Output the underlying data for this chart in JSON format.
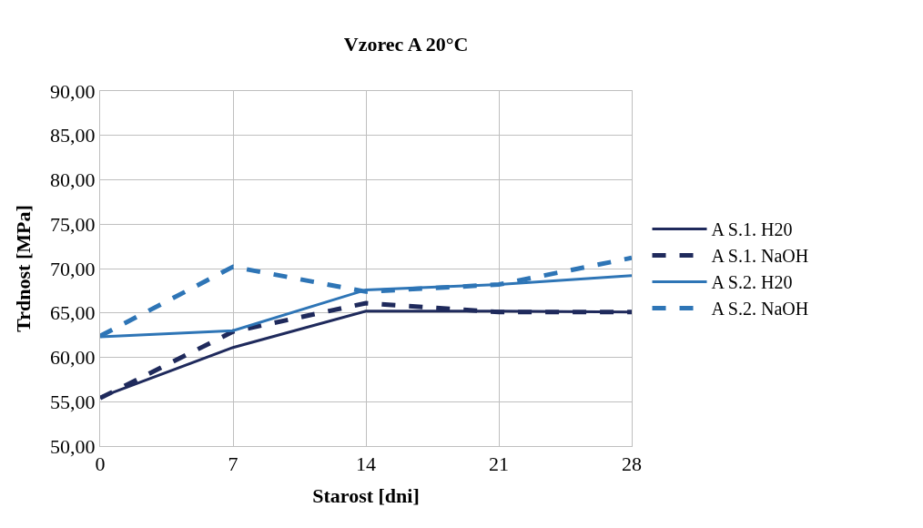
{
  "chart_data": {
    "type": "line",
    "title": "Vzorec A 20°C",
    "xlabel": "Starost [dni]",
    "ylabel": "Trdnost [MPa]",
    "x": [
      0,
      7,
      14,
      21,
      28
    ],
    "series": [
      {
        "name": "A S.1. H20",
        "color": "#1f2a5c",
        "line_style": "solid",
        "values": [
          55.5,
          61.1,
          65.2,
          65.2,
          65.1
        ]
      },
      {
        "name": "A S.1. NaOH",
        "color": "#1f2a5c",
        "line_style": "dashed",
        "values": [
          55.4,
          62.9,
          66.1,
          65.1,
          65.1
        ]
      },
      {
        "name": "A S.2. H20",
        "color": "#2e75b6",
        "line_style": "solid",
        "values": [
          62.3,
          63.0,
          67.6,
          68.2,
          69.2
        ]
      },
      {
        "name": "A S.2. NaOH",
        "color": "#2e75b6",
        "line_style": "dashed",
        "values": [
          62.4,
          70.2,
          67.4,
          68.2,
          71.2
        ]
      }
    ],
    "xlim": [
      0,
      28
    ],
    "xticks": [
      0,
      7,
      14,
      21,
      28
    ],
    "ylim": [
      50,
      90
    ],
    "yticks": [
      {
        "value": 50,
        "label": "50,00"
      },
      {
        "value": 55,
        "label": "55,00"
      },
      {
        "value": 60,
        "label": "60,00"
      },
      {
        "value": 65,
        "label": "65,00"
      },
      {
        "value": 70,
        "label": "70,00"
      },
      {
        "value": 75,
        "label": "75,00"
      },
      {
        "value": 80,
        "label": "80,00"
      },
      {
        "value": 85,
        "label": "85,00"
      },
      {
        "value": 90,
        "label": "90,00"
      }
    ],
    "grid": true,
    "legend": "right",
    "marker": "none"
  }
}
